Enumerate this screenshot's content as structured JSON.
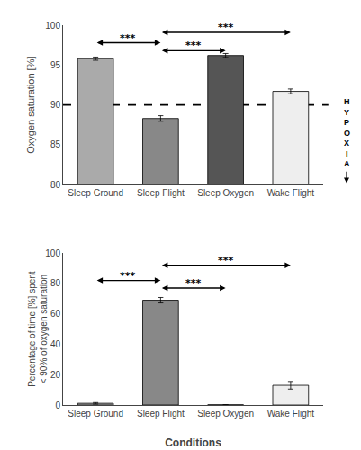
{
  "chart_data": [
    {
      "type": "bar",
      "categories": [
        "Sleep Ground",
        "Sleep Flight",
        "Sleep Oxygen",
        "Wake Flight"
      ],
      "values": [
        95.8,
        88.3,
        96.2,
        91.7
      ],
      "errors": [
        0.2,
        0.35,
        0.25,
        0.3
      ],
      "colors": [
        "#aaaaaa",
        "#888888",
        "#555555",
        "#eeeeee"
      ],
      "ylim": [
        80,
        100
      ],
      "yticks": [
        80,
        85,
        90,
        95,
        100
      ],
      "ylabel": "Oxygen saturation [%]",
      "hline": 90,
      "side_text": [
        "H",
        "Y",
        "P",
        "O",
        "X",
        "I",
        "A"
      ],
      "brackets": [
        {
          "x1": 0,
          "x2": 1,
          "y": 97.8,
          "label": "***"
        },
        {
          "x1": 1,
          "x2": 2,
          "y": 96.8,
          "label": "***"
        },
        {
          "x1": 1,
          "x2": 3,
          "y": 99.1,
          "label": "***"
        }
      ],
      "grid": false
    },
    {
      "type": "bar",
      "categories": [
        "Sleep Ground",
        "Sleep Flight",
        "Sleep Oxygen",
        "Wake Flight"
      ],
      "values": [
        1.1,
        69.0,
        0.1,
        13.0
      ],
      "errors": [
        0.5,
        1.8,
        0.05,
        2.5
      ],
      "colors": [
        "#aaaaaa",
        "#888888",
        "#555555",
        "#eeeeee"
      ],
      "ylim": [
        0,
        100
      ],
      "yticks": [
        0,
        20,
        40,
        60,
        80,
        100
      ],
      "ylabel": "Percentage of time [%] spent\n< 90% of oxygen saturation",
      "xlabel": "Conditions",
      "brackets": [
        {
          "x1": 0,
          "x2": 1,
          "y": 82,
          "label": "***"
        },
        {
          "x1": 1,
          "x2": 2,
          "y": 77,
          "label": "***"
        },
        {
          "x1": 1,
          "x2": 3,
          "y": 92,
          "label": "***"
        }
      ],
      "grid": false
    }
  ]
}
